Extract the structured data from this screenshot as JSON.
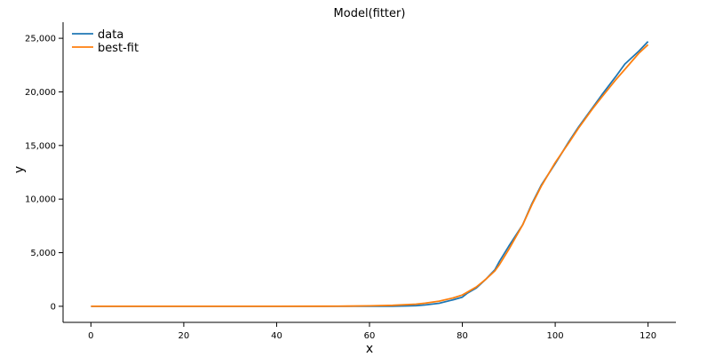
{
  "chart_data": {
    "type": "line",
    "title": "Model(fitter)",
    "xlabel": "x",
    "ylabel": "y",
    "xlim": [
      -6,
      126
    ],
    "ylim": [
      -1500,
      26500
    ],
    "x_ticks": [
      0,
      20,
      40,
      60,
      80,
      100,
      120
    ],
    "y_ticks": [
      0,
      5000,
      10000,
      15000,
      20000,
      25000
    ],
    "x_tick_labels": [
      "0",
      "20",
      "40",
      "60",
      "80",
      "100",
      "120"
    ],
    "y_tick_labels": [
      "0",
      "5,000",
      "10,000",
      "15,000",
      "20,000",
      "25,000"
    ],
    "grid": false,
    "legend_position": "top-left",
    "series": [
      {
        "name": "data",
        "color": "#1f77b4",
        "x": [
          0,
          10,
          20,
          30,
          40,
          50,
          55,
          60,
          65,
          70,
          72,
          75,
          78,
          80,
          81,
          83,
          85,
          87,
          88,
          90,
          93,
          95,
          97,
          100,
          103,
          105,
          108,
          110,
          113,
          115,
          118,
          120
        ],
        "y": [
          0,
          0,
          0,
          0,
          0,
          0,
          0,
          0,
          10,
          60,
          120,
          280,
          600,
          850,
          1200,
          1700,
          2500,
          3400,
          4200,
          5600,
          7600,
          9600,
          11300,
          13300,
          15400,
          16700,
          18500,
          19700,
          21400,
          22600,
          23800,
          24700
        ]
      },
      {
        "name": "best-fit",
        "color": "#ff7f0e",
        "x": [
          0,
          10,
          20,
          30,
          40,
          50,
          55,
          60,
          65,
          70,
          72,
          75,
          78,
          80,
          81,
          83,
          85,
          87,
          88,
          90,
          93,
          95,
          97,
          100,
          103,
          105,
          108,
          110,
          113,
          115,
          118,
          120
        ],
        "y": [
          0,
          0,
          0,
          0,
          0,
          5,
          15,
          40,
          90,
          200,
          290,
          480,
          780,
          1050,
          1300,
          1800,
          2500,
          3300,
          3900,
          5300,
          7600,
          9500,
          11200,
          13400,
          15300,
          16600,
          18400,
          19500,
          21100,
          22100,
          23600,
          24400
        ]
      }
    ]
  }
}
